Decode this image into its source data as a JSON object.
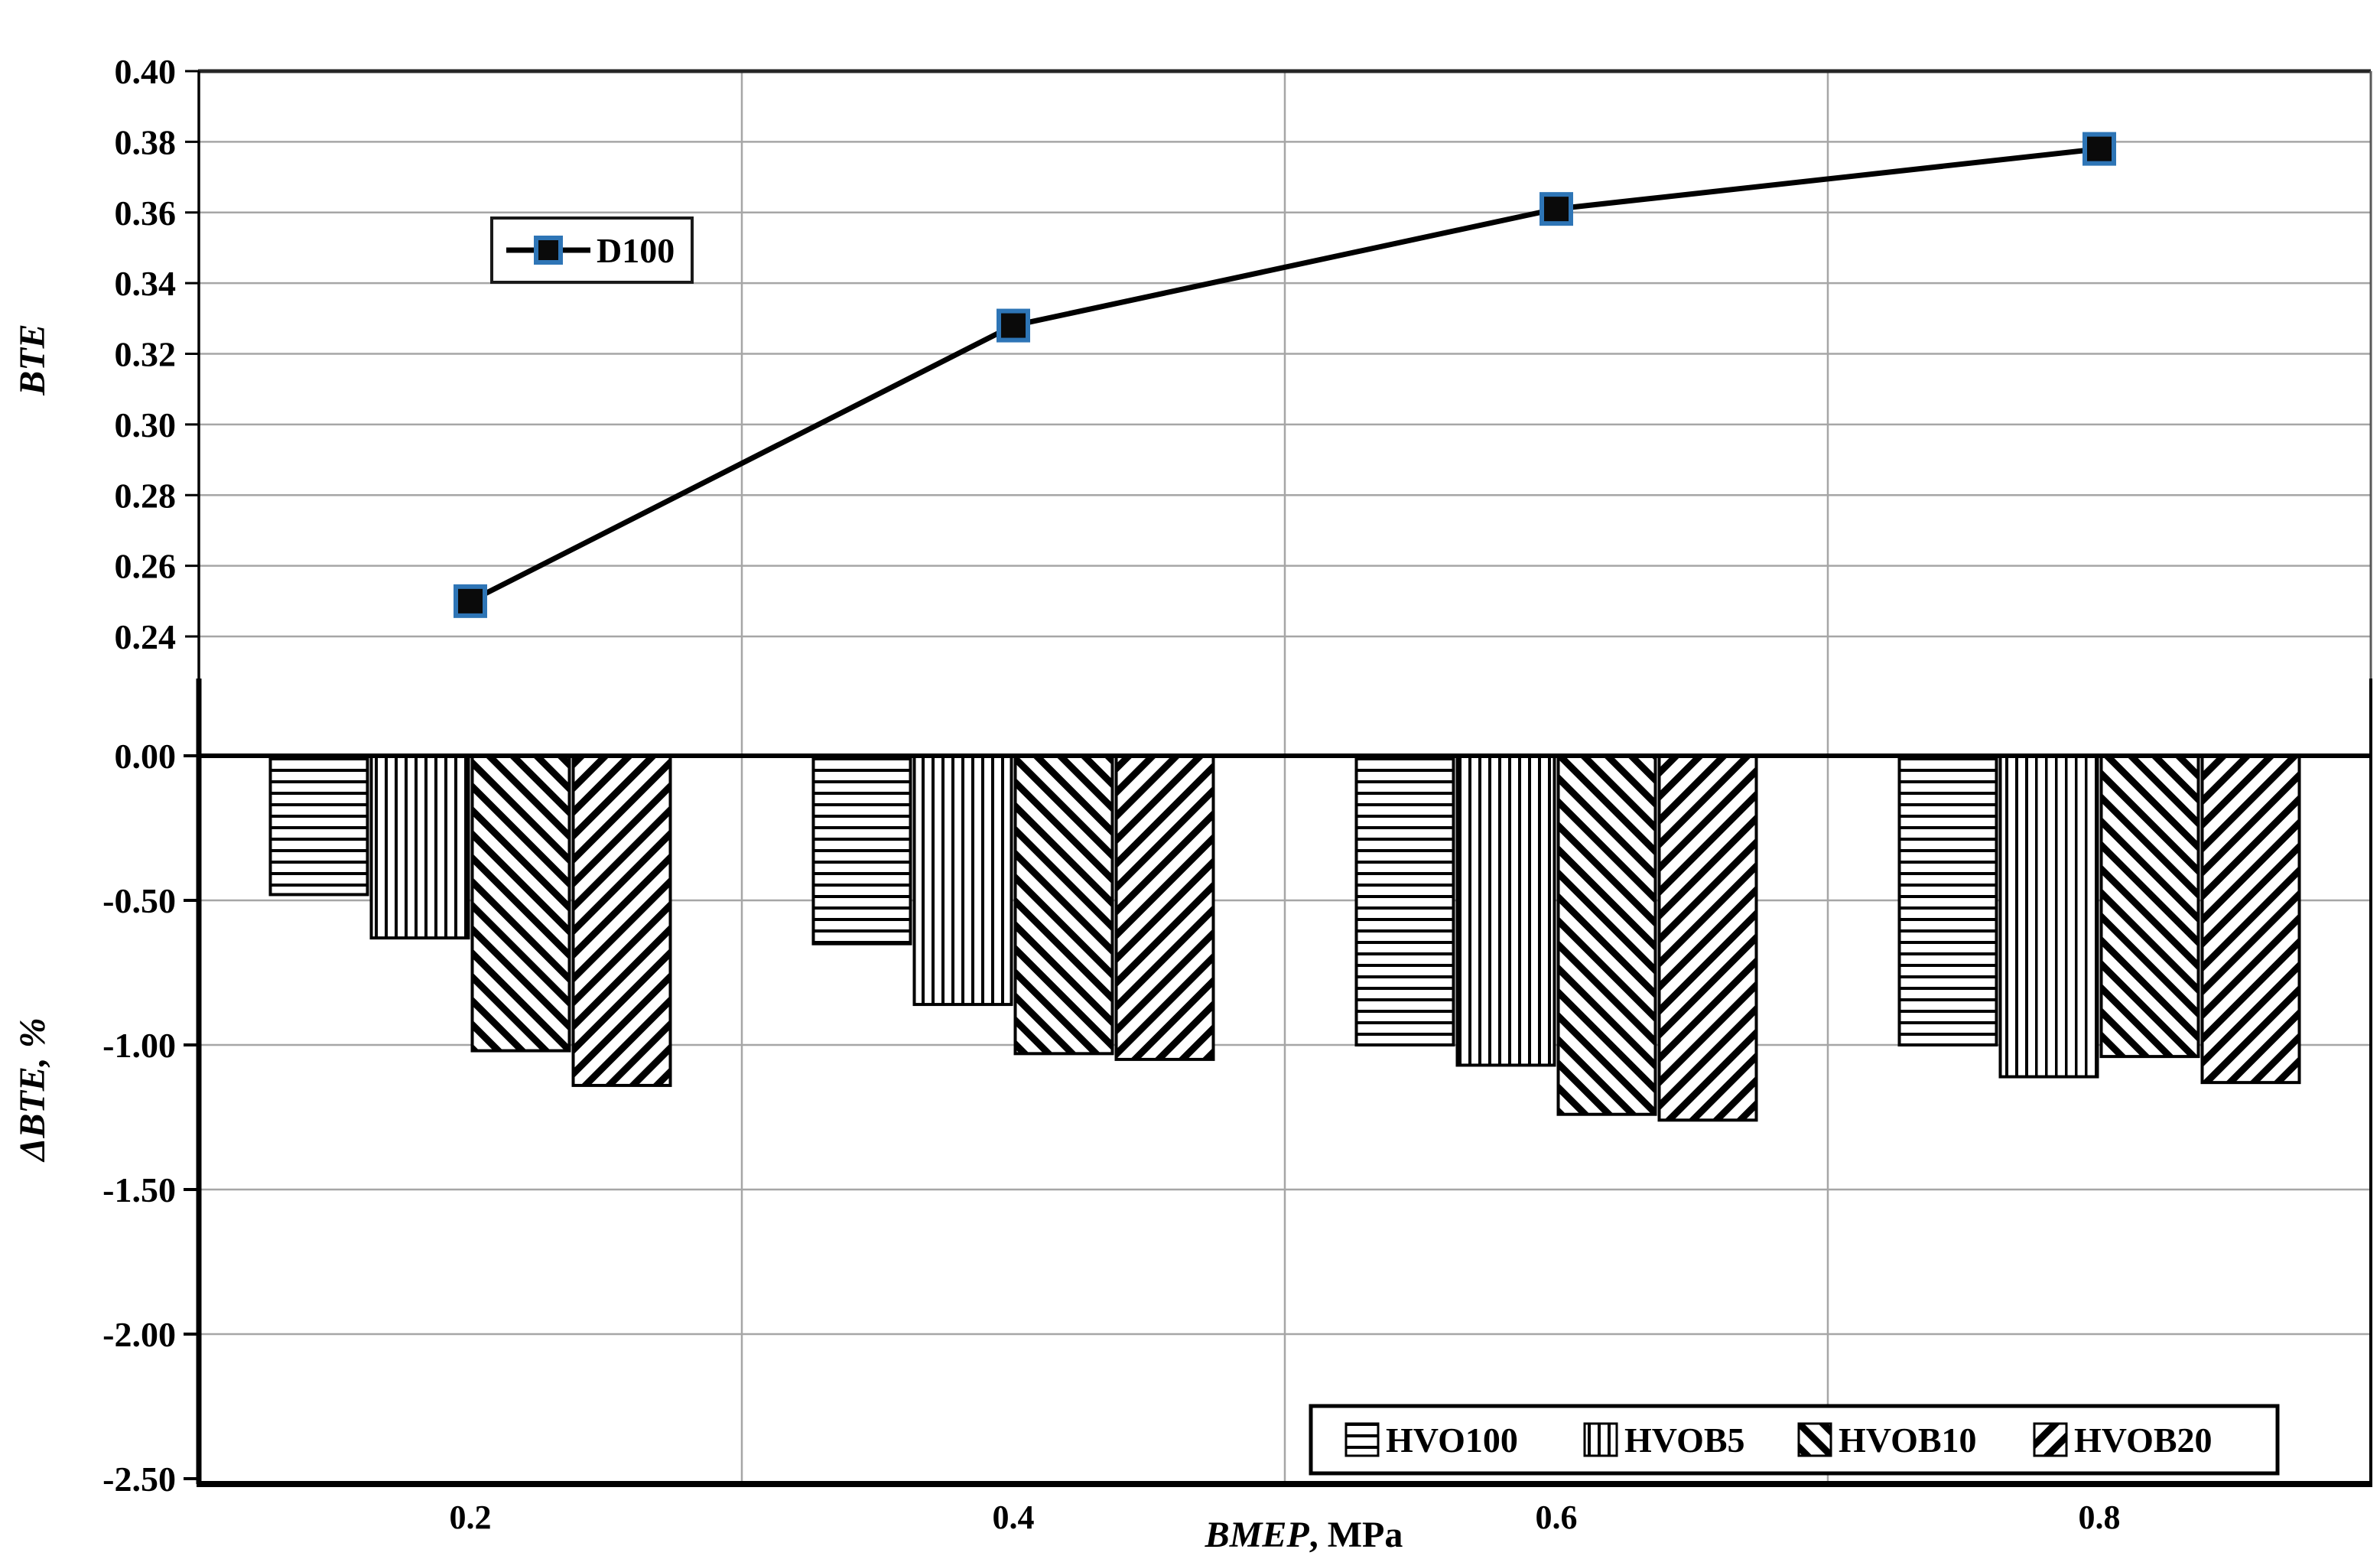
{
  "figure": {
    "background": "#ffffff",
    "x_axis_title_italic": "BMEP",
    "x_axis_title_rest": ", MPa",
    "x_tick_labels": [
      "0.2",
      "0.4",
      "0.6",
      "0.8"
    ]
  },
  "chart_data": [
    {
      "panel": "top",
      "type": "line",
      "title": "",
      "x": [
        0.2,
        0.4,
        0.6,
        0.8
      ],
      "series": [
        {
          "name": "D100",
          "values": [
            0.25,
            0.328,
            0.361,
            0.378
          ]
        }
      ],
      "ylabel": "BTE",
      "ylim": [
        0.228,
        0.4
      ],
      "yticks": [
        "0.40",
        "0.38",
        "0.36",
        "0.34",
        "0.32",
        "0.30",
        "0.28",
        "0.26",
        "0.24"
      ],
      "ytick_values": [
        0.4,
        0.38,
        0.36,
        0.34,
        0.32,
        0.3,
        0.28,
        0.26,
        0.24
      ],
      "grid": true,
      "legend_position": "inside-upper-left",
      "legend_label": "D100",
      "marker": "square"
    },
    {
      "panel": "bottom",
      "type": "bar",
      "title": "",
      "categories": [
        "0.2",
        "0.4",
        "0.6",
        "0.8"
      ],
      "series": [
        {
          "name": "HVO100",
          "hatch": "horizontal-lines",
          "values": [
            -0.48,
            -0.65,
            -1.0,
            -1.0
          ]
        },
        {
          "name": "HVOB5",
          "hatch": "vertical-lines",
          "values": [
            -0.63,
            -0.86,
            -1.07,
            -1.11
          ]
        },
        {
          "name": "HVOB10",
          "hatch": "diagonal-backslash",
          "values": [
            -1.02,
            -1.03,
            -1.24,
            -1.04
          ]
        },
        {
          "name": "HVOB20",
          "hatch": "diagonal-forwardslash",
          "values": [
            -1.14,
            -1.05,
            -1.26,
            -1.13
          ]
        }
      ],
      "xlabel": "BMEP, MPa",
      "ylabel": "ΔBTE, %",
      "ylim": [
        -2.5,
        0.27
      ],
      "yticks": [
        "0.00",
        "-0.50",
        "-1.00",
        "-1.50",
        "-2.00",
        "-2.50"
      ],
      "ytick_values": [
        0.0,
        -0.5,
        -1.0,
        -1.5,
        -2.0,
        -2.5
      ],
      "grid": true,
      "legend_position": "inside-bottom-right"
    }
  ],
  "colors": {
    "line": "#000000",
    "marker_fill": "#0a0a0a",
    "marker_border": "#2e75b6",
    "gridline": "#a6a6a6",
    "panel_border_dark": "#262626",
    "panel_border_thin": "#595959",
    "axis": "#000000",
    "background": "#ffffff",
    "text": "#000000"
  }
}
